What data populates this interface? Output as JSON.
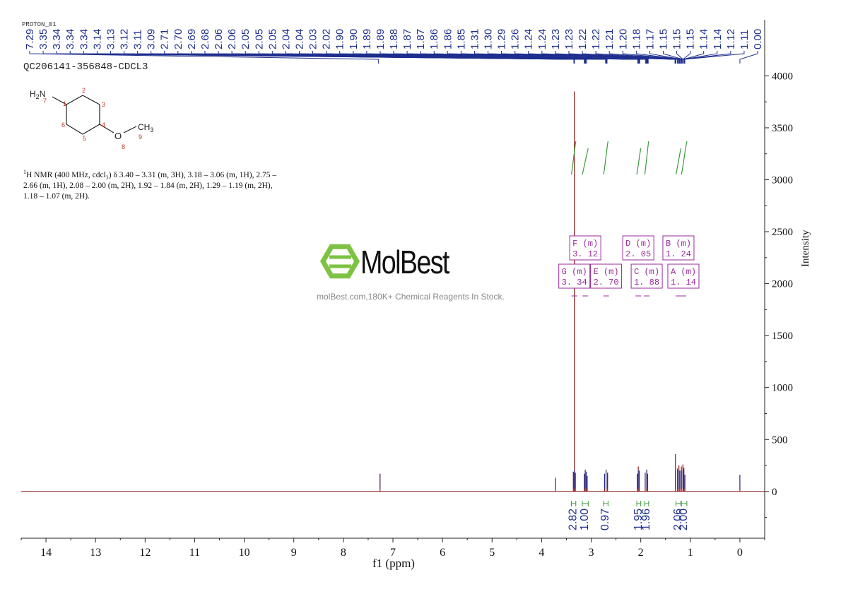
{
  "chart_data": {
    "type": "line",
    "title": "QC206141-356848-CDCL3",
    "experiment_label": "PROTON_01",
    "xlabel": "f1 (ppm)",
    "ylabel": "Intensity",
    "xlim": [
      14.5,
      -0.5
    ],
    "ylim": [
      -450,
      4200
    ],
    "x_reversed": true,
    "x_ticks": [
      14,
      13,
      12,
      11,
      10,
      9,
      8,
      7,
      6,
      5,
      4,
      3,
      2,
      1,
      0
    ],
    "y_ticks": [
      0,
      500,
      1000,
      1500,
      2000,
      2500,
      3000,
      3500,
      4000
    ],
    "y_tick_labels": [
      "0",
      "500",
      "1000",
      "1500",
      "2000",
      "2500",
      "3000",
      "3500",
      "4000"
    ],
    "grid": false,
    "spectrum_color": "#8b1a1a",
    "peak_color": "#1f2f8f",
    "integral_color": "#3a9a3a",
    "multiplet_color": "#9a2a9a",
    "peak_labels": [
      "7.29",
      "3.35",
      "3.34",
      "3.34",
      "3.34",
      "3.14",
      "3.13",
      "3.12",
      "3.11",
      "3.09",
      "2.71",
      "2.70",
      "2.69",
      "2.68",
      "2.06",
      "2.06",
      "2.05",
      "2.05",
      "2.05",
      "2.04",
      "2.04",
      "2.03",
      "2.02",
      "1.90",
      "1.90",
      "1.89",
      "1.89",
      "1.88",
      "1.87",
      "1.87",
      "1.86",
      "1.86",
      "1.85",
      "1.31",
      "1.30",
      "1.29",
      "1.26",
      "1.24",
      "1.24",
      "1.23",
      "1.23",
      "1.22",
      "1.22",
      "1.21",
      "1.20",
      "1.18",
      "1.17",
      "1.15",
      "1.15",
      "1.15",
      "1.14",
      "1.14",
      "1.12",
      "1.11",
      "0.00"
    ],
    "peaks": [
      {
        "ppm": 7.26,
        "height": 170
      },
      {
        "ppm": 3.72,
        "height": 130
      },
      {
        "ppm": 3.34,
        "height": 3850
      },
      {
        "ppm": 3.36,
        "height": 190
      },
      {
        "ppm": 3.32,
        "height": 180
      },
      {
        "ppm": 3.14,
        "height": 170
      },
      {
        "ppm": 3.12,
        "height": 210
      },
      {
        "ppm": 3.1,
        "height": 190
      },
      {
        "ppm": 3.08,
        "height": 150
      },
      {
        "ppm": 2.73,
        "height": 170
      },
      {
        "ppm": 2.7,
        "height": 210
      },
      {
        "ppm": 2.67,
        "height": 180
      },
      {
        "ppm": 2.07,
        "height": 170
      },
      {
        "ppm": 2.05,
        "height": 240
      },
      {
        "ppm": 2.03,
        "height": 200
      },
      {
        "ppm": 1.91,
        "height": 180
      },
      {
        "ppm": 1.88,
        "height": 210
      },
      {
        "ppm": 1.86,
        "height": 170
      },
      {
        "ppm": 1.3,
        "height": 360
      },
      {
        "ppm": 1.26,
        "height": 220
      },
      {
        "ppm": 1.23,
        "height": 250
      },
      {
        "ppm": 1.21,
        "height": 200
      },
      {
        "ppm": 1.18,
        "height": 240
      },
      {
        "ppm": 1.15,
        "height": 260
      },
      {
        "ppm": 1.13,
        "height": 230
      },
      {
        "ppm": 1.11,
        "height": 160
      },
      {
        "ppm": 0.0,
        "height": 160
      }
    ],
    "integrals": [
      {
        "from": 3.4,
        "to": 3.31,
        "value": "2.82"
      },
      {
        "from": 3.18,
        "to": 3.06,
        "value": "1.00"
      },
      {
        "from": 2.75,
        "to": 2.66,
        "value": "0.97"
      },
      {
        "from": 2.08,
        "to": 2.0,
        "value": "1.95"
      },
      {
        "from": 1.92,
        "to": 1.84,
        "value": "1.96"
      },
      {
        "from": 1.29,
        "to": 1.19,
        "value": "2.06"
      },
      {
        "from": 1.18,
        "to": 1.07,
        "value": "2.00"
      }
    ],
    "multiplets": [
      {
        "label": "F (m)",
        "shift": "3. 12",
        "ppm": 3.12,
        "row": "upper"
      },
      {
        "label": "D (m)",
        "shift": "2. 05",
        "ppm": 2.05,
        "row": "upper"
      },
      {
        "label": "B (m)",
        "shift": "1. 24",
        "ppm": 1.24,
        "row": "upper"
      },
      {
        "label": "G (m)",
        "shift": "3. 34",
        "ppm": 3.34,
        "row": "lower"
      },
      {
        "label": "E (m)",
        "shift": "2. 70",
        "ppm": 2.7,
        "row": "lower"
      },
      {
        "label": "C (m)",
        "shift": "1. 88",
        "ppm": 1.88,
        "row": "lower"
      },
      {
        "label": "A (m)",
        "shift": "1. 14",
        "ppm": 1.14,
        "row": "lower"
      }
    ]
  },
  "molecule": {
    "amine_label": "H2N",
    "methyl_label": "CH3",
    "oxygen_label": "O",
    "atom_numbers": [
      "1",
      "2",
      "3",
      "4",
      "5",
      "6",
      "7",
      "8",
      "9"
    ]
  },
  "nmr_description": {
    "sup": "1",
    "text": "H NMR (400 MHz, cdcl₃) δ 3.40 – 3.31 (m, 3H), 3.18 – 3.06 (m, 1H), 2.75 – 2.66 (m, 1H), 2.08 – 2.00 (m, 2H), 1.92 – 1.84 (m, 2H), 1.29 – 1.19 (m, 2H), 1.18 – 1.07 (m, 2H)."
  },
  "watermark": {
    "brand": "MolBest",
    "tagline": "molBest.com,180K+ Chemical Reagents In Stock.",
    "logo_color": "#7dc242"
  }
}
